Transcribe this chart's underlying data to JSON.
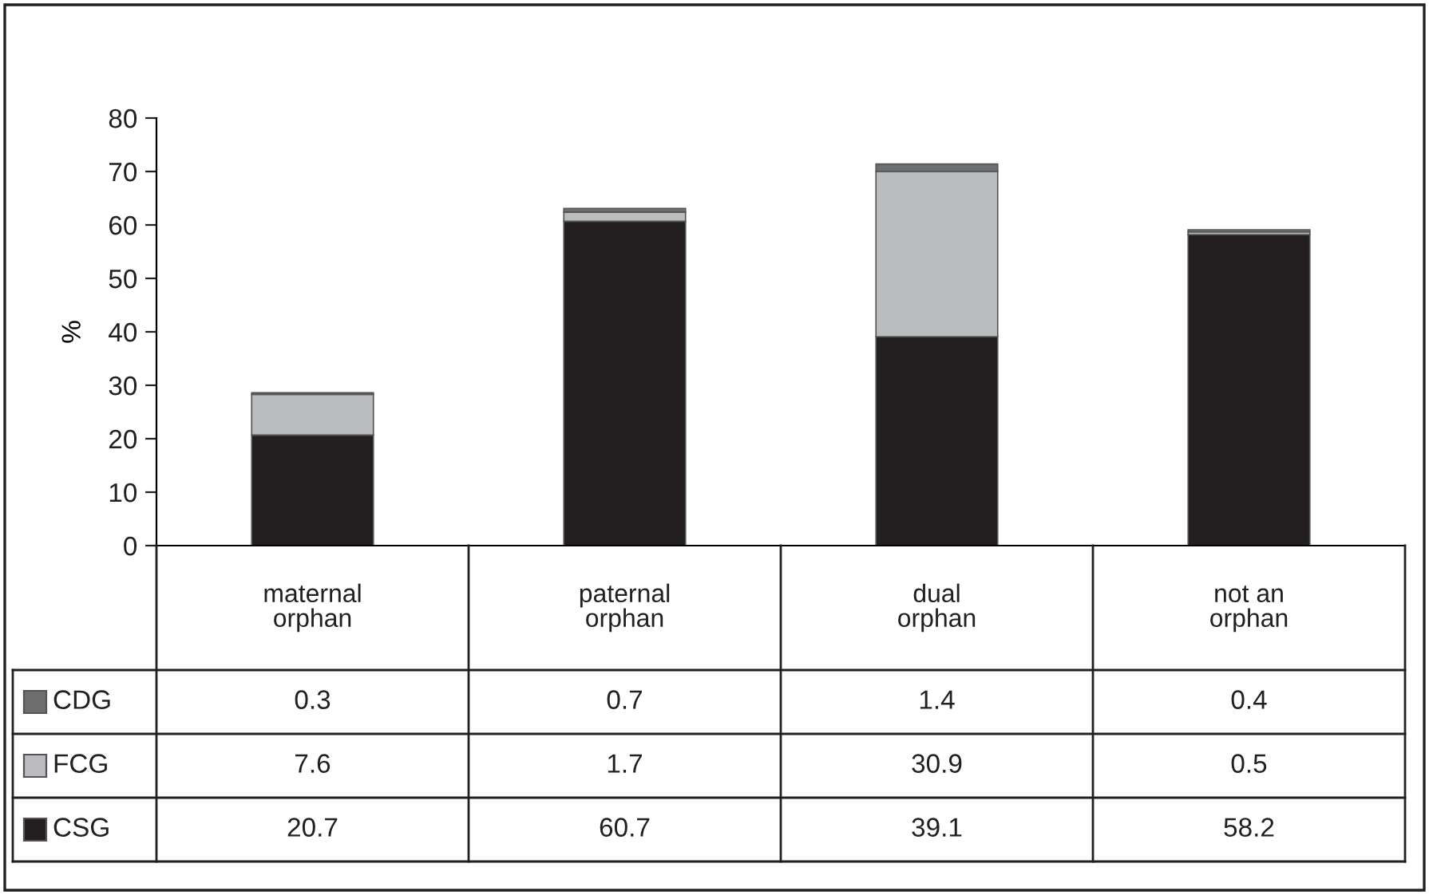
{
  "chart_data": {
    "type": "bar",
    "stacked": true,
    "ylabel": "%",
    "categories": [
      "maternal\norphan",
      "paternal\norphan",
      "dual\norphan",
      "not an\norphan"
    ],
    "series": [
      {
        "name": "CSG",
        "color": "#231f20",
        "values": [
          20.7,
          60.7,
          39.1,
          58.2
        ]
      },
      {
        "name": "FCG",
        "color": "#bbbcbf",
        "values": [
          7.6,
          1.7,
          30.9,
          0.5
        ]
      },
      {
        "name": "CDG",
        "color": "#6d6e70",
        "values": [
          0.3,
          0.7,
          1.4,
          0.4
        ]
      }
    ],
    "ylim": [
      0,
      80
    ],
    "yticks": [
      0,
      10,
      20,
      30,
      40,
      50,
      60,
      70,
      80
    ],
    "grid": false,
    "legend": "bottom left",
    "data_labels": true
  }
}
